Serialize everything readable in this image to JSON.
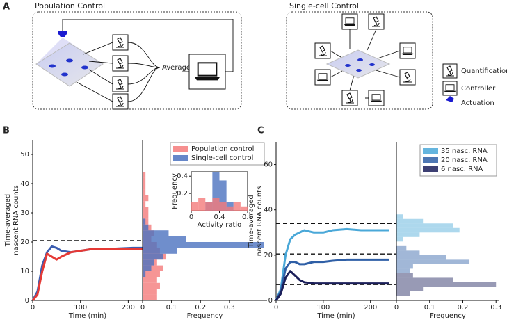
{
  "panels": {
    "a": "A",
    "b": "B",
    "c": "C"
  },
  "diagram": {
    "population_title": "Population Control",
    "single_title": "Single-cell Control",
    "average": "Average",
    "legend": [
      "Quantification",
      "Controller",
      "Actuation"
    ]
  },
  "chart_data": [
    {
      "type": "line",
      "xlabel": "Time (min)",
      "ylabel": [
        "Time-averaged",
        "nascent RNA counts"
      ],
      "x": [
        0,
        10,
        20,
        30,
        40,
        50,
        60,
        80,
        100,
        120,
        150,
        180,
        210,
        230
      ],
      "xlim": [
        0,
        230
      ],
      "xticks": [
        0,
        100,
        200
      ],
      "ylim": [
        0,
        55
      ],
      "yticks": [
        0,
        10,
        20,
        30,
        40,
        50
      ],
      "hlines": [
        20.5
      ],
      "series": [
        {
          "color": "#3b5db0",
          "values": [
            0,
            3,
            12,
            16.5,
            18.5,
            18,
            17,
            16.5,
            17,
            17.5,
            17.5,
            17.8,
            18,
            18
          ]
        },
        {
          "color": "#e53935",
          "values": [
            0,
            2,
            10,
            16,
            15,
            14,
            15,
            16.5,
            17,
            17.5,
            17.5,
            17.5,
            17.5,
            17.5
          ]
        }
      ]
    },
    {
      "type": "histogram",
      "orientation": "horizontal",
      "xlabel": "Frequency",
      "bins": [
        0,
        2,
        4,
        6,
        8,
        10,
        12,
        14,
        16,
        18,
        20,
        22,
        24,
        26,
        28,
        30,
        32,
        34,
        36,
        38,
        40,
        42,
        44
      ],
      "xlim": [
        0,
        0.43
      ],
      "xticks": [
        0,
        0.1,
        0.2,
        0.3
      ],
      "ylim": [
        0,
        55
      ],
      "legend": "upper right",
      "series": [
        {
          "name": "Population control",
          "color": "#f47b7b",
          "values": [
            0.05,
            0.05,
            0.06,
            0.05,
            0.06,
            0.07,
            0.05,
            0.08,
            0.06,
            0.05,
            0.03,
            0.04,
            0.03,
            0.02,
            0.02,
            0.02,
            0.01,
            0.02,
            0.01,
            0.01,
            0.01,
            0.01
          ]
        },
        {
          "name": "Single-cell control",
          "color": "#4b72bf",
          "values": [
            0,
            0,
            0,
            0,
            0.01,
            0.03,
            0.04,
            0.07,
            0.12,
            0.42,
            0.15,
            0.09,
            0.02,
            0.01,
            0,
            0,
            0,
            0,
            0,
            0,
            0,
            0
          ]
        }
      ]
    },
    {
      "type": "histogram",
      "orientation": "vertical",
      "xlabel": "Activity ratio",
      "ylabel": "Frequency",
      "bins": [
        0,
        0.1,
        0.2,
        0.3,
        0.4,
        0.5,
        0.6,
        0.7,
        0.8
      ],
      "xlim": [
        0,
        0.8
      ],
      "xticks": [
        0,
        0.4,
        0.8
      ],
      "ylim": [
        0,
        0.45
      ],
      "yticks": [
        0.2,
        0.4
      ],
      "series": [
        {
          "color": "#4b72bf",
          "values": [
            0,
            0,
            0.1,
            0.45,
            0.35,
            0.1,
            0,
            0
          ]
        },
        {
          "color": "#f47b7b",
          "values": [
            0.1,
            0.15,
            0.1,
            0.15,
            0.1,
            0.05,
            0.1,
            0.05
          ]
        }
      ]
    },
    {
      "type": "line",
      "xlabel": "Time (min)",
      "ylabel": [
        "Time-averaged",
        "nascent RNA counts"
      ],
      "x": [
        0,
        10,
        20,
        30,
        40,
        50,
        60,
        80,
        100,
        120,
        150,
        180,
        210,
        240
      ],
      "xlim": [
        0,
        255
      ],
      "xticks": [
        0,
        100,
        200
      ],
      "ylim": [
        0,
        70
      ],
      "yticks": [
        0,
        20,
        40,
        60
      ],
      "hlines": [
        34,
        20.5,
        7
      ],
      "series": [
        {
          "color": "#4aa8d8",
          "values": [
            0,
            5,
            20,
            27,
            29,
            30,
            31,
            30,
            30,
            31,
            31.5,
            31,
            31,
            31
          ]
        },
        {
          "color": "#2f5fa6",
          "values": [
            0,
            4,
            14,
            17,
            17,
            16,
            16,
            17,
            17,
            17.5,
            18,
            18,
            18,
            18
          ]
        },
        {
          "color": "#1b1f5a",
          "values": [
            0,
            3,
            10,
            13,
            11,
            9,
            8,
            7.5,
            7.5,
            7.5,
            7.5,
            7.5,
            7.5,
            7.5
          ]
        }
      ]
    },
    {
      "type": "histogram",
      "orientation": "horizontal",
      "xlabel": "Frequency",
      "bins": [
        0,
        2,
        4,
        6,
        8,
        10,
        12,
        14,
        16,
        18,
        20,
        22,
        24,
        26,
        28,
        30,
        32,
        34,
        36,
        38,
        40
      ],
      "xlim": [
        0,
        0.31
      ],
      "xticks": [
        0,
        0.1,
        0.2,
        0.3
      ],
      "ylim": [
        0,
        70
      ],
      "legend": "upper right",
      "series": [
        {
          "name": "35 nasc. RNA",
          "color": "#4aa8d8",
          "values": [
            0,
            0,
            0,
            0,
            0,
            0,
            0,
            0,
            0,
            0,
            0,
            0,
            0,
            0.02,
            0.07,
            0.19,
            0.17,
            0.08,
            0.02,
            0
          ]
        },
        {
          "name": "20 nasc. RNA",
          "color": "#2f5fa6",
          "values": [
            0,
            0,
            0,
            0,
            0,
            0,
            0.04,
            0.05,
            0.22,
            0.15,
            0.07,
            0.03,
            0,
            0,
            0,
            0,
            0,
            0,
            0,
            0
          ]
        },
        {
          "name": "6 nasc. RNA",
          "color": "#1b1f5a",
          "values": [
            0,
            0.04,
            0.08,
            0.3,
            0.17,
            0.05,
            0,
            0,
            0,
            0,
            0,
            0,
            0,
            0,
            0,
            0,
            0,
            0,
            0,
            0
          ]
        }
      ]
    }
  ]
}
